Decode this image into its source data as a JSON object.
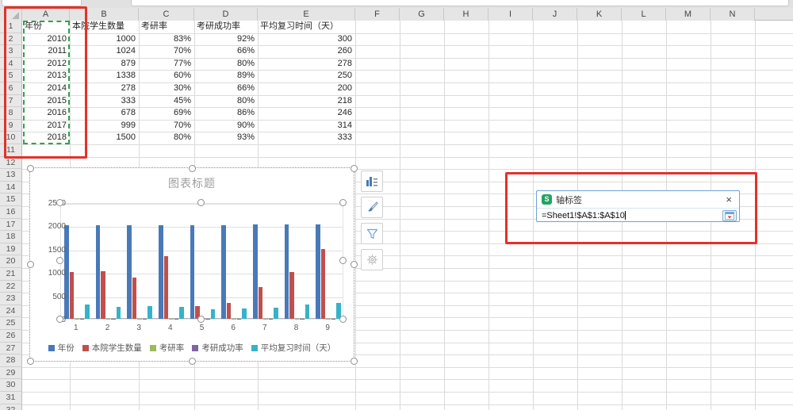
{
  "sheet": {
    "column_headers": [
      "A",
      "B",
      "C",
      "D",
      "E",
      "F",
      "G",
      "H",
      "I",
      "J",
      "K",
      "L",
      "M",
      "N"
    ],
    "visible_row_count": 32,
    "table": {
      "headers": [
        "年份",
        "本院学生数量",
        "考研率",
        "考研成功率",
        "平均复习时间（天）"
      ],
      "rows": [
        [
          "2010",
          "1000",
          "83%",
          "92%",
          "300"
        ],
        [
          "2011",
          "1024",
          "70%",
          "66%",
          "260"
        ],
        [
          "2012",
          "879",
          "77%",
          "80%",
          "278"
        ],
        [
          "2013",
          "1338",
          "60%",
          "89%",
          "250"
        ],
        [
          "2014",
          "278",
          "30%",
          "66%",
          "200"
        ],
        [
          "2015",
          "333",
          "45%",
          "80%",
          "218"
        ],
        [
          "2016",
          "678",
          "69%",
          "86%",
          "246"
        ],
        [
          "2017",
          "999",
          "70%",
          "90%",
          "314"
        ],
        [
          "2018",
          "1500",
          "80%",
          "93%",
          "333"
        ]
      ]
    },
    "selection_range": "A1:A10"
  },
  "chart_data": {
    "type": "bar",
    "title": "图表标题",
    "categories": [
      "1",
      "2",
      "3",
      "4",
      "5",
      "6",
      "7",
      "8",
      "9"
    ],
    "series": [
      {
        "name": "年份",
        "color": "#4979b9",
        "values": [
          2010,
          2011,
          2012,
          2013,
          2014,
          2015,
          2016,
          2017,
          2018
        ]
      },
      {
        "name": "本院学生数量",
        "color": "#c0504d",
        "values": [
          1000,
          1024,
          879,
          1338,
          278,
          333,
          678,
          999,
          1500
        ]
      },
      {
        "name": "考研率",
        "color": "#9bbb59",
        "values": [
          0.83,
          0.7,
          0.77,
          0.6,
          0.3,
          0.45,
          0.69,
          0.7,
          0.8
        ]
      },
      {
        "name": "考研成功率",
        "color": "#8064a2",
        "values": [
          0.92,
          0.66,
          0.8,
          0.89,
          0.66,
          0.8,
          0.86,
          0.9,
          0.93
        ]
      },
      {
        "name": "平均复习时间（天）",
        "color": "#35b3c8",
        "values": [
          300,
          260,
          278,
          250,
          200,
          218,
          246,
          314,
          333
        ]
      }
    ],
    "ylim": [
      0,
      2500
    ],
    "yticks": [
      0,
      500,
      1000,
      1500,
      2000,
      2500
    ],
    "grid": true,
    "legend_position": "bottom"
  },
  "chart_toolbar": {
    "icons": [
      "chart-elements-icon",
      "brush-icon",
      "funnel-icon",
      "gear-icon"
    ]
  },
  "dialog": {
    "icon": "wps-logo",
    "title": "轴标签",
    "close_label": "×",
    "range_value": "=Sheet1!$A$1:$A$10"
  },
  "colors": {
    "annotation_red": "#e3312b",
    "selection_green": "#2fa350",
    "dialog_border_blue": "#6da4d8"
  }
}
